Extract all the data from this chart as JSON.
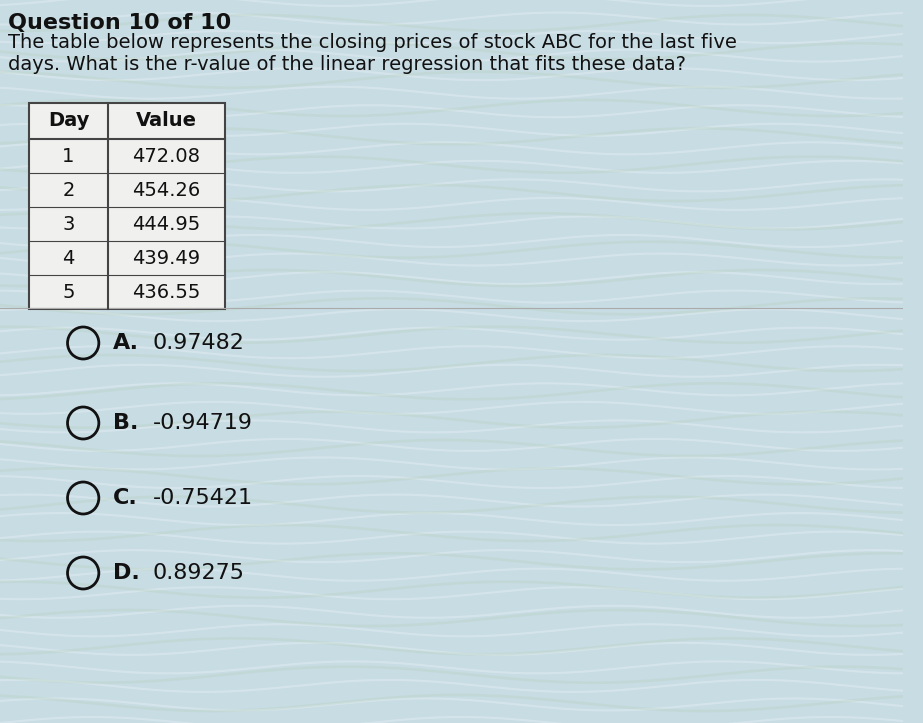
{
  "question_label": "Question 10 of 10",
  "question_text_line1": "The table below represents the closing prices of stock ABC for the last five",
  "question_text_line2": "days. What is the r-value of the linear regression that fits these data?",
  "table_headers": [
    "Day",
    "Value"
  ],
  "table_rows": [
    [
      "1",
      "472.08"
    ],
    [
      "2",
      "454.26"
    ],
    [
      "3",
      "444.95"
    ],
    [
      "4",
      "439.49"
    ],
    [
      "5",
      "436.55"
    ]
  ],
  "choices": [
    {
      "label": "A.",
      "value": "0.97482"
    },
    {
      "label": "B.",
      "value": "-0.94719"
    },
    {
      "label": "C.",
      "value": "-0.75421"
    },
    {
      "label": "D.",
      "value": "0.89275"
    }
  ],
  "bg_color_top": "#b8ccd8",
  "bg_color_mid": "#c8dce4",
  "table_bg": "#f0f0ee",
  "table_border": "#444444",
  "text_color": "#111111",
  "title_fontsize": 16,
  "body_fontsize": 14,
  "choice_fontsize": 16,
  "table_fontsize": 14
}
